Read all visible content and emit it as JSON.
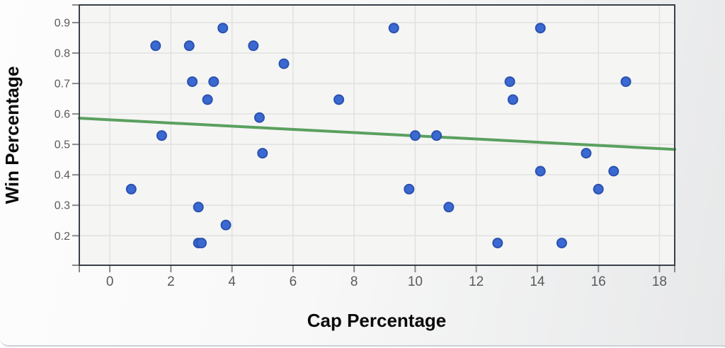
{
  "chart_data": {
    "type": "scatter",
    "title": "",
    "xlabel": "Cap Percentage",
    "ylabel": "Win Percentage",
    "xlim": [
      -1.0,
      18.5
    ],
    "ylim": [
      0.103,
      0.958
    ],
    "x_ticks": [
      0,
      2,
      4,
      6,
      8,
      10,
      12,
      14,
      16,
      18
    ],
    "y_ticks": [
      0.2,
      0.3,
      0.4,
      0.5,
      0.6,
      0.7,
      0.8,
      0.9
    ],
    "grid": true,
    "legend_position": "none",
    "points": [
      [
        0.7,
        0.353
      ],
      [
        1.5,
        0.824
      ],
      [
        1.7,
        0.529
      ],
      [
        2.6,
        0.824
      ],
      [
        2.7,
        0.706
      ],
      [
        2.9,
        0.176
      ],
      [
        2.9,
        0.294
      ],
      [
        3.0,
        0.176
      ],
      [
        3.2,
        0.647
      ],
      [
        3.4,
        0.706
      ],
      [
        3.7,
        0.882
      ],
      [
        3.8,
        0.235
      ],
      [
        4.7,
        0.824
      ],
      [
        4.9,
        0.588
      ],
      [
        5.0,
        0.471
      ],
      [
        5.7,
        0.765
      ],
      [
        7.5,
        0.647
      ],
      [
        9.3,
        0.882
      ],
      [
        9.8,
        0.353
      ],
      [
        10.0,
        0.529
      ],
      [
        10.7,
        0.529
      ],
      [
        11.1,
        0.294
      ],
      [
        12.7,
        0.176
      ],
      [
        13.1,
        0.706
      ],
      [
        13.2,
        0.647
      ],
      [
        14.1,
        0.412
      ],
      [
        14.1,
        0.882
      ],
      [
        14.8,
        0.176
      ],
      [
        15.6,
        0.471
      ],
      [
        16.0,
        0.353
      ],
      [
        16.5,
        0.412
      ],
      [
        16.9,
        0.706
      ]
    ],
    "trendline": {
      "kind": "linear",
      "slope": -0.00526,
      "intercept": 0.5808,
      "x_start": -1.0,
      "x_end": 18.5
    },
    "colors": {
      "point_fill": "#3b69d2",
      "point_stroke": "#2b52ae",
      "trend": "#5aa05f",
      "grid": "#e1e1e1",
      "plot_bg": "#f5f5f4",
      "plot_border": "#394049",
      "tick": "#8a8a8a",
      "tick_label": "#5a5a5a",
      "axis_title": "#0a0a0a"
    }
  }
}
